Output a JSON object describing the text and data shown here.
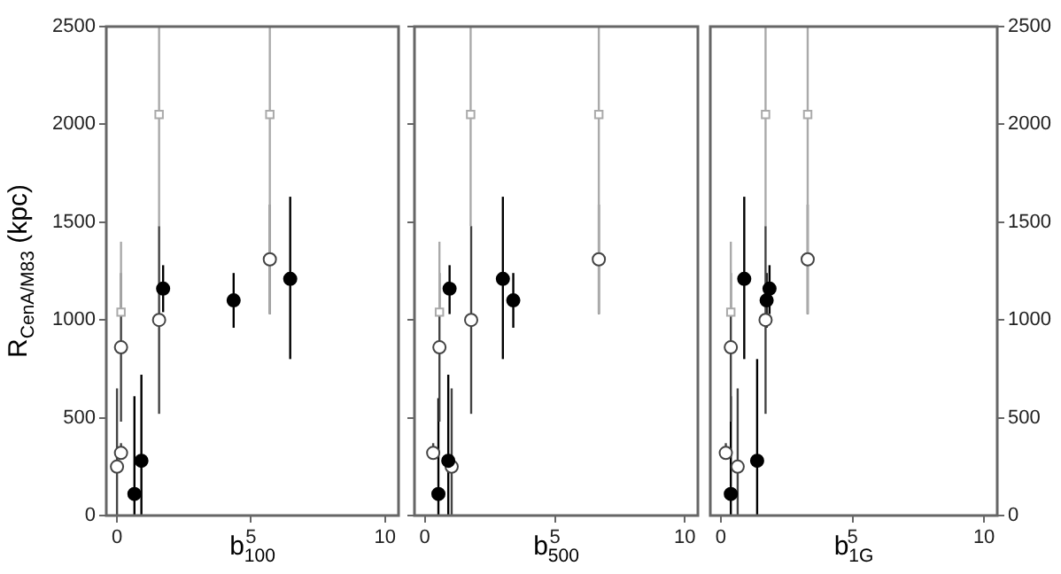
{
  "chart_data": [
    {
      "type": "scatter",
      "xlabel": "b$_{100}$",
      "ylabel": "R$_{CenA/M83}$ (kpc)",
      "xlim": [
        -0.4,
        10.5
      ],
      "xticks": [
        0,
        5,
        10
      ],
      "ylim": [
        0,
        2500
      ],
      "yticks": [
        0,
        500,
        1000,
        1500,
        2000,
        2500
      ],
      "grid": false,
      "legend": false,
      "series": [
        {
          "color": "#000000",
          "marker": "circle",
          "x": [
            0.65,
            0.91,
            1.72,
            4.35,
            6.46
          ],
          "values": [
            110,
            280,
            1160,
            1100,
            1210
          ],
          "errors": [
            [
              0,
              610
            ],
            [
              0,
              720
            ],
            [
              1040,
              1280
            ],
            [
              960,
              1240
            ],
            [
              800,
              1630
            ]
          ]
        },
        {
          "color": "#444444",
          "marker": "circle",
          "x": [
            0,
            0.15,
            0.15,
            1.57,
            5.7
          ],
          "values": [
            250,
            320,
            860,
            1000,
            1310
          ],
          "errors": [
            [
              0,
              650
            ],
            [
              290,
              370
            ],
            [
              480,
              1240
            ],
            [
              520,
              1480
            ],
            [
              1030,
              1590
            ]
          ]
        },
        {
          "color": "#aaaaaa",
          "marker": "square",
          "x": [
            0.15,
            1.57,
            5.7
          ],
          "values": [
            1040,
            2050,
            2050
          ],
          "errors": [
            [
              1040,
              1400
            ],
            [
              1480,
              2500
            ],
            [
              1030,
              2500
            ]
          ]
        }
      ]
    },
    {
      "type": "scatter",
      "xlabel": "b$_{500}$",
      "xlim": [
        -0.4,
        10.5
      ],
      "xticks": [
        0,
        5,
        10
      ],
      "ylim": [
        0,
        2500
      ],
      "yticks": [
        0,
        500,
        1000,
        1500,
        2000,
        2500
      ],
      "tick_labels": "x",
      "grid": false,
      "legend": false,
      "series": [
        {
          "color": "#000000",
          "marker": "circle",
          "x": [
            0.52,
            0.9,
            0.95,
            3.0,
            3.4
          ],
          "values": [
            110,
            280,
            1160,
            1210,
            1100
          ],
          "errors": [
            [
              0,
              600
            ],
            [
              0,
              720
            ],
            [
              1030,
              1280
            ],
            [
              800,
              1630
            ],
            [
              960,
              1240
            ]
          ]
        },
        {
          "color": "#444444",
          "marker": "circle",
          "x": [
            0.32,
            0.56,
            1.03,
            1.78,
            6.69
          ],
          "values": [
            320,
            860,
            250,
            1000,
            1310
          ],
          "errors": [
            [
              290,
              370
            ],
            [
              480,
              1240
            ],
            [
              0,
              650
            ],
            [
              520,
              1480
            ],
            [
              1030,
              1590
            ]
          ]
        },
        {
          "color": "#aaaaaa",
          "marker": "square",
          "x": [
            0.56,
            1.76,
            6.69
          ],
          "values": [
            1040,
            2050,
            2050
          ],
          "errors": [
            [
              1040,
              1400
            ],
            [
              1480,
              2500
            ],
            [
              1030,
              2500
            ]
          ]
        }
      ]
    },
    {
      "type": "scatter",
      "xlabel": "b$_{1G}$",
      "xlim": [
        -0.4,
        10.5
      ],
      "xticks": [
        0,
        5,
        10
      ],
      "y2lim": [
        0,
        2500
      ],
      "y2ticks": [
        0,
        500,
        1000,
        1500,
        2000,
        2500
      ],
      "grid": false,
      "legend": false,
      "series": [
        {
          "color": "#000000",
          "marker": "circle",
          "axis": "y2",
          "x": [
            0.38,
            1.38,
            0.89,
            1.74,
            1.85
          ],
          "values": [
            110,
            280,
            1210,
            1100,
            1160
          ],
          "errors": [
            [
              0,
              610
            ],
            [
              0,
              800
            ],
            [
              800,
              1630
            ],
            [
              960,
              1240
            ],
            [
              1030,
              1280
            ]
          ]
        },
        {
          "color": "#444444",
          "marker": "circle",
          "axis": "y2",
          "x": [
            0.19,
            0.38,
            0.64,
            1.7,
            3.3
          ],
          "values": [
            320,
            860,
            250,
            1000,
            1310
          ],
          "errors": [
            [
              290,
              370
            ],
            [
              480,
              1240
            ],
            [
              0,
              650
            ],
            [
              520,
              1480
            ],
            [
              1030,
              1590
            ]
          ]
        },
        {
          "color": "#aaaaaa",
          "marker": "square",
          "axis": "y2",
          "x": [
            0.38,
            1.7,
            3.3
          ],
          "values": [
            1040,
            2050,
            2050
          ],
          "errors": [
            [
              1040,
              1400
            ],
            [
              1480,
              2500
            ],
            [
              1030,
              2500
            ]
          ]
        }
      ]
    }
  ]
}
